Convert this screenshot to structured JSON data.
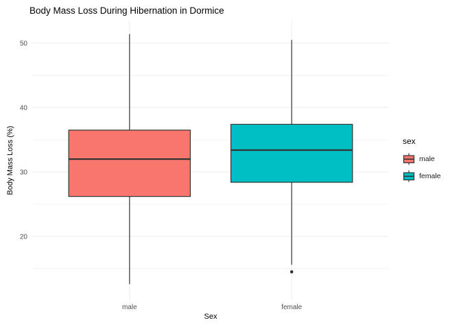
{
  "chart_data": {
    "type": "boxplot",
    "title": "Body Mass Loss During Hibernation in Dormice",
    "xlabel": "Sex",
    "ylabel": "Body Mass Loss (%)",
    "categories": [
      "male",
      "female"
    ],
    "y_major_ticks": [
      20,
      30,
      40,
      50
    ],
    "y_minor_ticks": [
      15,
      25,
      35,
      45
    ],
    "ylim": [
      10.2,
      53.4
    ],
    "grid": true,
    "legend": {
      "title": "sex",
      "position": "right"
    },
    "series": [
      {
        "name": "male",
        "color": "#F8766D",
        "whisker_low": 12.6,
        "q1": 26.2,
        "median": 32.0,
        "q3": 36.5,
        "whisker_high": 51.4,
        "outliers": []
      },
      {
        "name": "female",
        "color": "#00BFC4",
        "whisker_low": 15.6,
        "q1": 28.4,
        "median": 33.4,
        "q3": 37.4,
        "whisker_high": 50.5,
        "outliers": [
          14.5
        ]
      }
    ],
    "colors": {
      "background": "#FFFFFF",
      "gridline_major": "#EBEBEB",
      "gridline_minor": "#F2F2F2",
      "box_outline": "#333333",
      "tick_label": "#4D4D4D",
      "title_text": "#000000"
    }
  }
}
